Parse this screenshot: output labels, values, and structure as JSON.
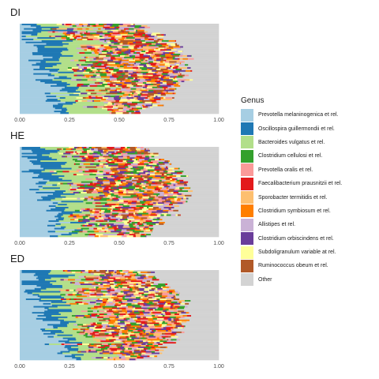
{
  "chart_data": {
    "type": "bar",
    "orientation": "horizontal",
    "stacked": true,
    "xlim": [
      0,
      1
    ],
    "x_ticks": [
      "0.00",
      "0.25",
      "0.50",
      "0.75",
      "1.00"
    ],
    "legend": {
      "title": "Genus",
      "position": "right",
      "entries": [
        {
          "name": "Prevotella melaninogenica et rel.",
          "color": "#a6cee3"
        },
        {
          "name": "Oscillospira guillermondii et rel.",
          "color": "#1f78b4"
        },
        {
          "name": "Bacteroides vulgatus et rel.",
          "color": "#b2df8a"
        },
        {
          "name": "Clostridium cellulosi et rel.",
          "color": "#33a02c"
        },
        {
          "name": "Prevotella oralis et rel.",
          "color": "#fb9a99"
        },
        {
          "name": "Faecalibacterium prausnitzii et rel.",
          "color": "#e31a1c"
        },
        {
          "name": "Sporobacter termitidis et rel.",
          "color": "#fdbf6f"
        },
        {
          "name": "Clostridium symbiosum et rel.",
          "color": "#ff7f00"
        },
        {
          "name": "Allistipes et rel.",
          "color": "#cab2d6"
        },
        {
          "name": "Clostridium orbiscindens et rel.",
          "color": "#6a3d9a"
        },
        {
          "name": "Subdoligranulum variable at rel.",
          "color": "#ffff99"
        },
        {
          "name": "Ruminococcus obeum et rel.",
          "color": "#b15928"
        },
        {
          "name": "Other",
          "color": "#d3d3d3"
        }
      ]
    },
    "panels": [
      {
        "title": "DI",
        "n_samples": 60,
        "seed": 11
      },
      {
        "title": "HE",
        "n_samples": 60,
        "seed": 23
      },
      {
        "title": "ED",
        "n_samples": 60,
        "seed": 37
      }
    ]
  }
}
